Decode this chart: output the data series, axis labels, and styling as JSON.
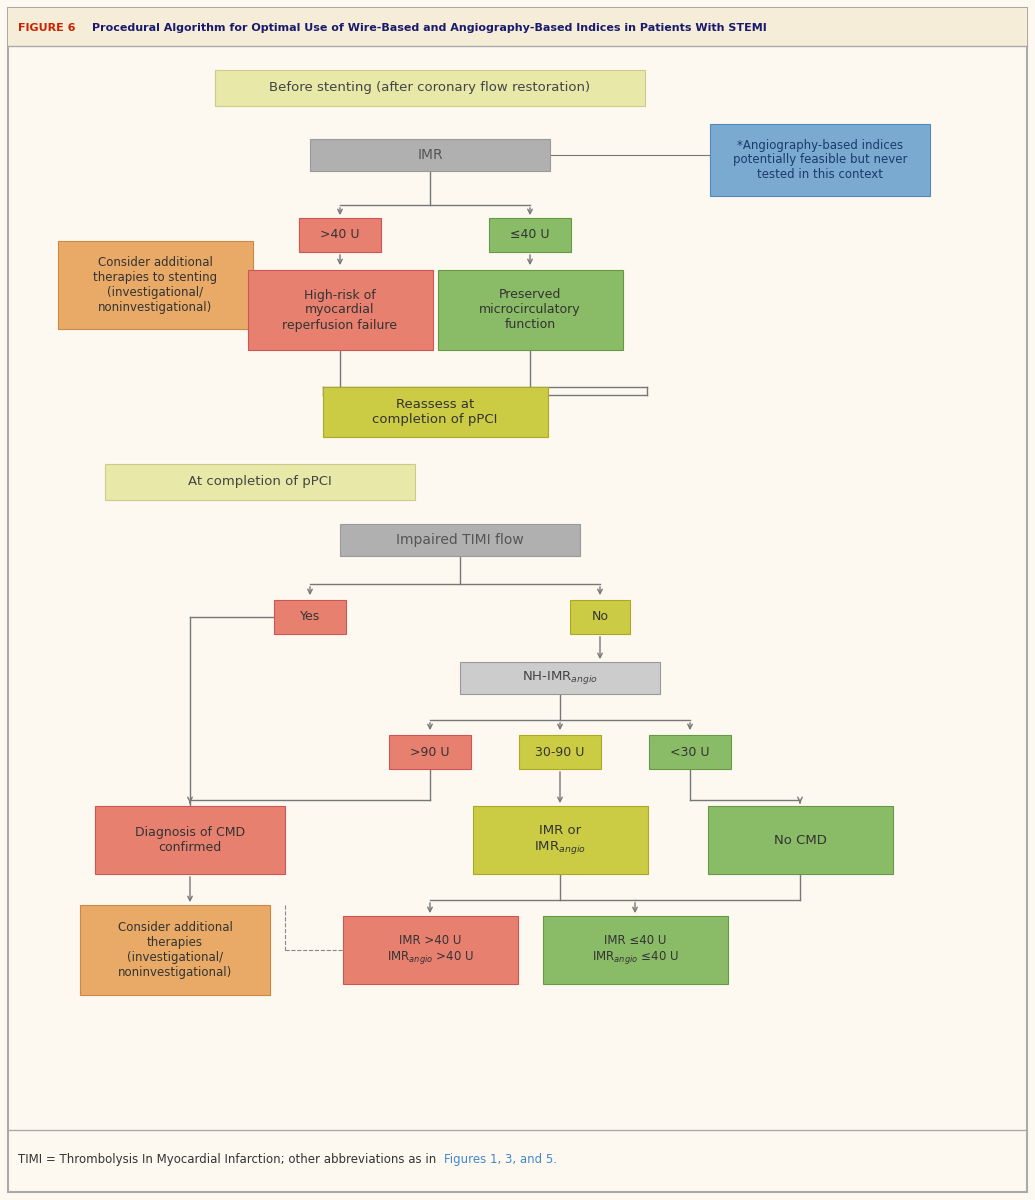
{
  "figure_label": "FIGURE 6",
  "figure_label_color": "#cc2200",
  "title": "Procedural Algorithm for Optimal Use of Wire-Based and Angiography-Based Indices in Patients With STEMI",
  "title_color": "#1a1a6e",
  "bg_color": "#fdf8f0",
  "border_color": "#aaaaaa",
  "footer_text": "TIMI = Thrombolysis In Myocardial Infarction; other abbreviations as in ",
  "footer_link": "Figures 1, 3, and 5.",
  "footer_link_color": "#4488cc",
  "colors": {
    "yellow_bg": "#e8e8a8",
    "gray_box": "#b0b0b0",
    "red_box": "#e88070",
    "green_box": "#8abb66",
    "olive_box": "#cccc44",
    "orange_box": "#e8aa66",
    "blue_box": "#7aaad0",
    "light_gray": "#cccccc",
    "line": "#777777"
  },
  "section1_header": "Before stenting (after coronary flow restoration)",
  "imr_label": "IMR",
  "angio_note": "*Angiography-based indices\npotentially feasible but never\ntested in this context",
  "consider_text": "Consider additional\ntherapies to stenting\n(investigational/\nnoninvestigational)",
  "gt40": ">40 U",
  "le40": "≤40 U",
  "high_risk": "High-risk of\nmyocardial\nreperfusion failure",
  "preserved": "Preserved\nmicrocirculatory\nfunction",
  "reassess": "Reassess at\ncompletion of pPCI",
  "section2_header": "At completion of pPCI",
  "impaired_timi": "Impaired TIMI flow",
  "yes_label": "Yes",
  "no_label": "No",
  "gt90": ">90 U",
  "range3090": "30-90 U",
  "lt30": "<30 U",
  "cmd_confirmed": "Diagnosis of CMD\nconfirmed",
  "no_cmd": "No CMD",
  "consider2_text": "Consider additional\ntherapies\n(investigational/\nnoninvestigational)",
  "imr_gt40": "IMR >40 U\nIMR$_{angio}$ >40 U",
  "imr_le40": "IMR ≤40 U\nIMR$_{angio}$ ≤40 U"
}
